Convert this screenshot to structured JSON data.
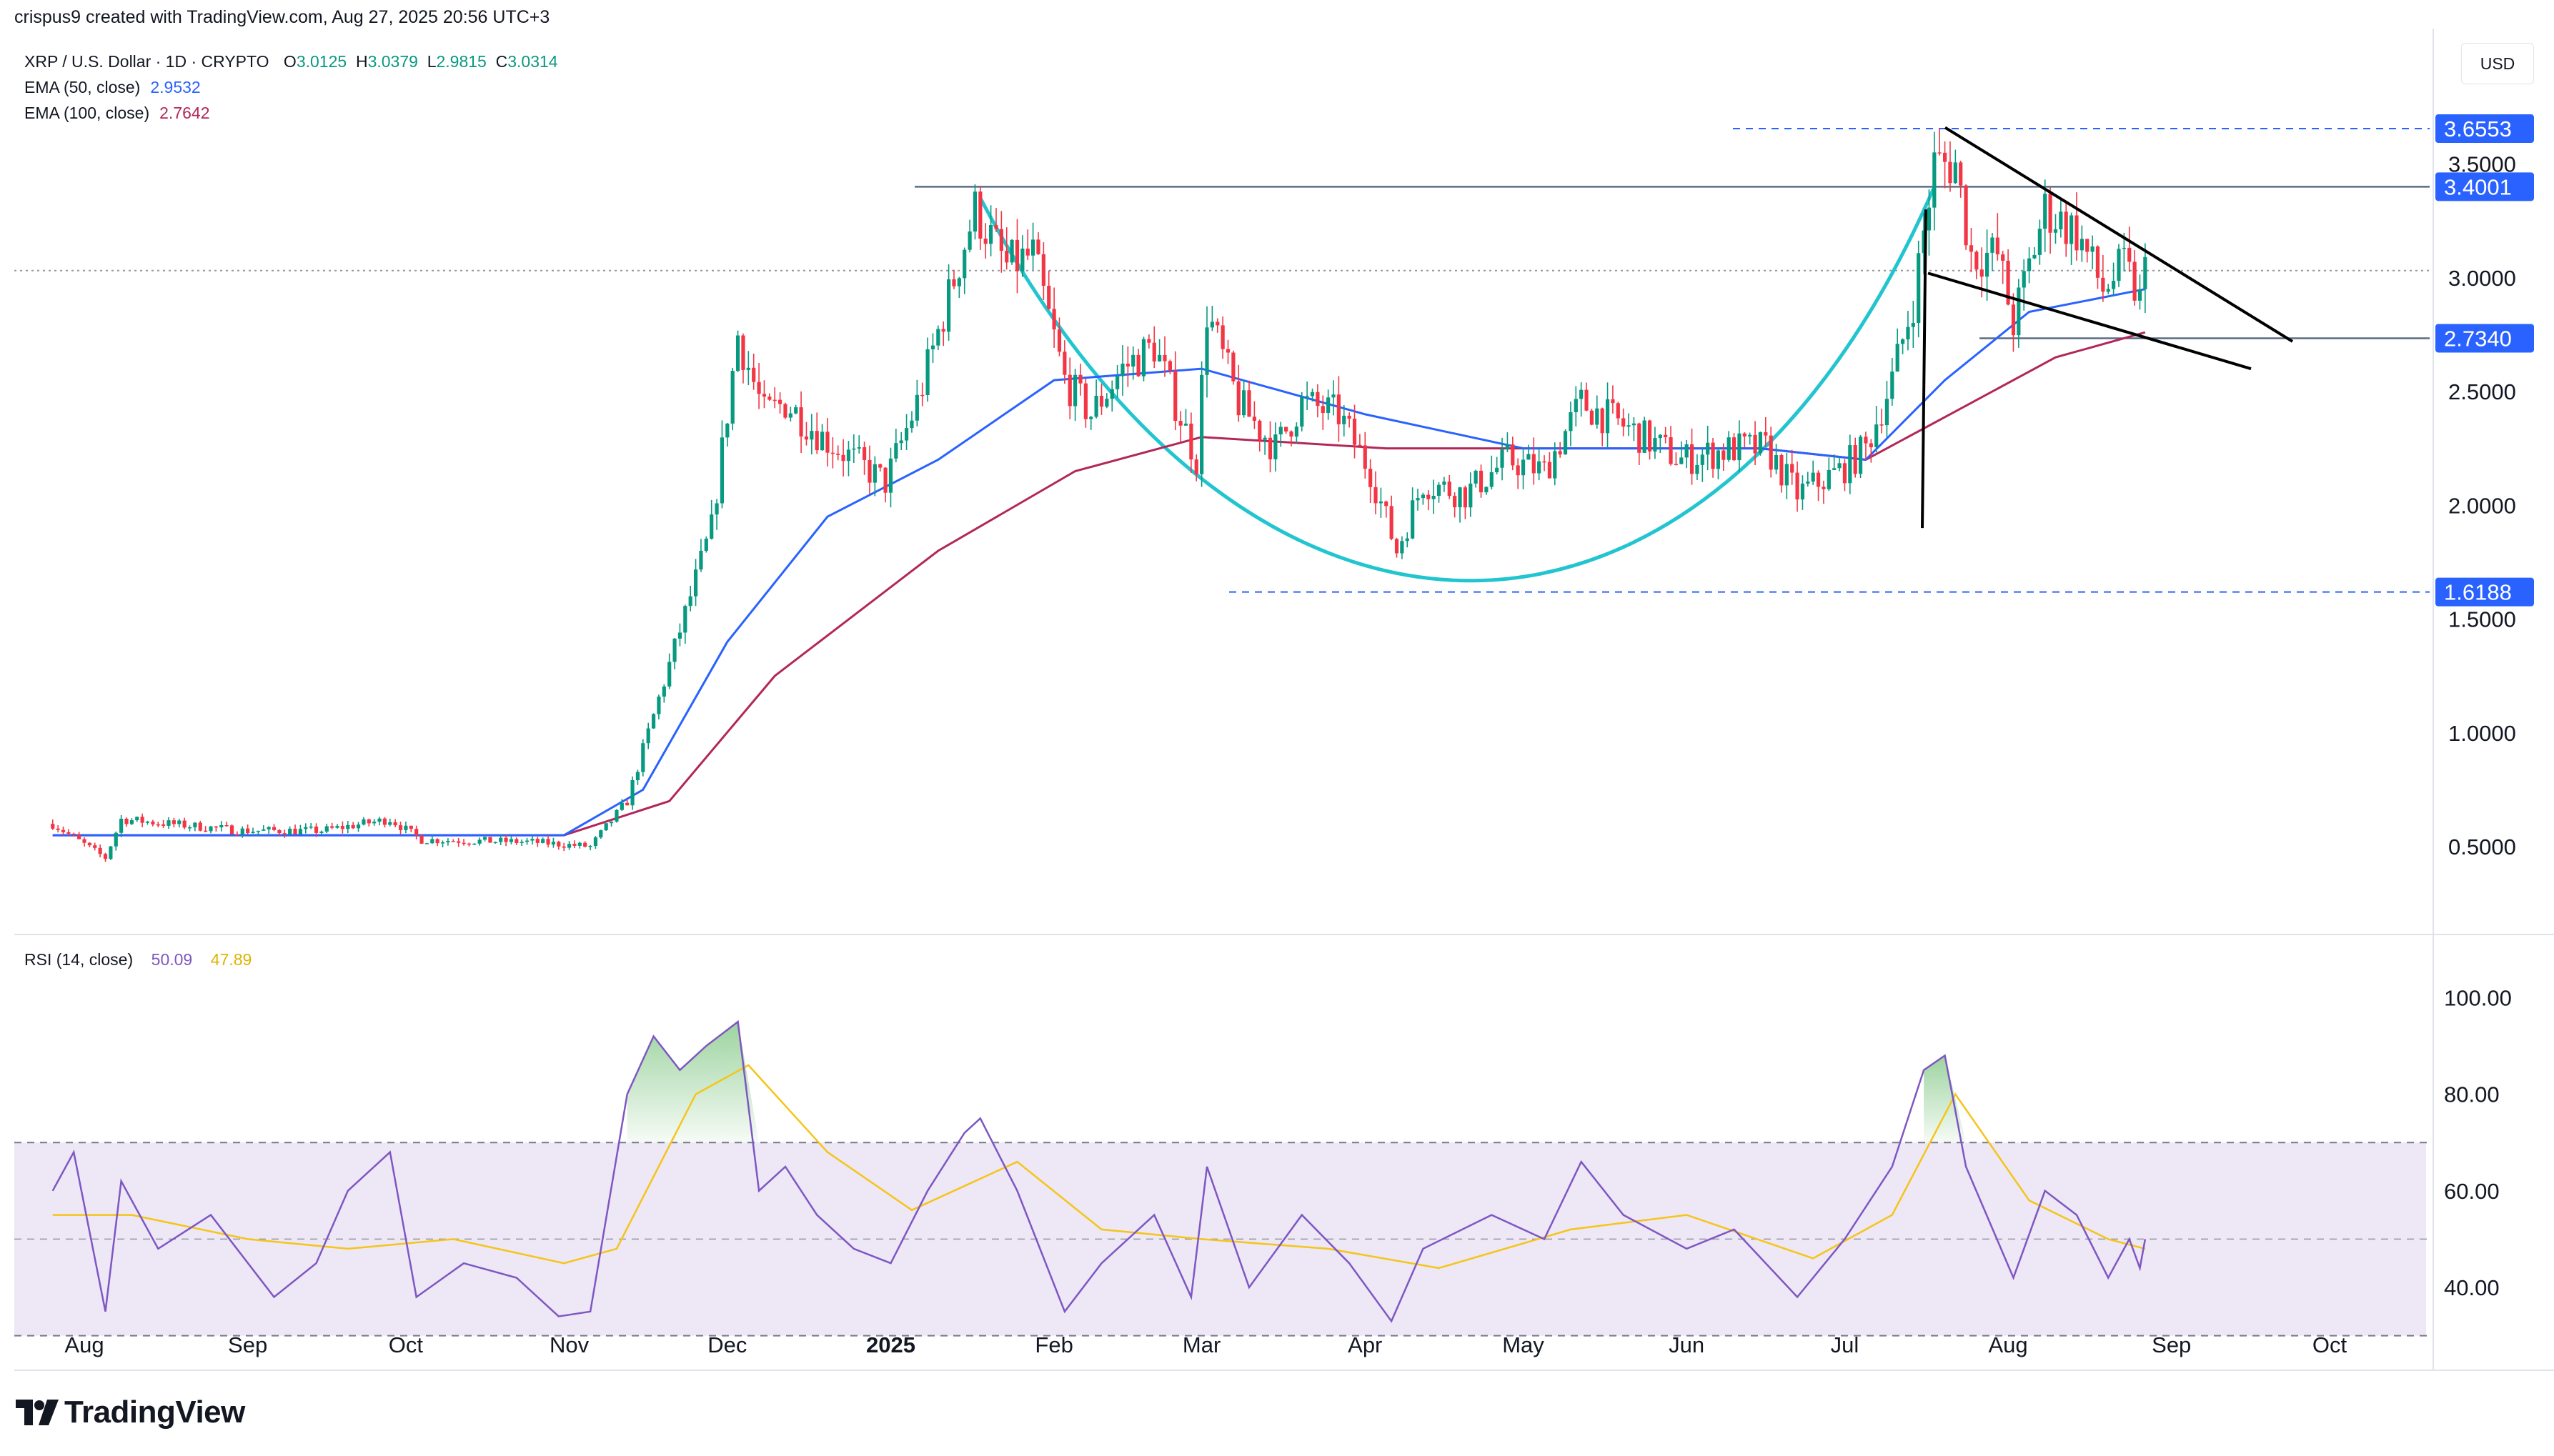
{
  "header": {
    "created_by": "crispus9 created with TradingView.com, Aug 27, 2025 20:56 UTC+3"
  },
  "legend": {
    "symbol": "XRP / U.S. Dollar · 1D · CRYPTO",
    "ohlc": {
      "O": "3.0125",
      "H": "3.0379",
      "L": "2.9815",
      "C": "3.0314"
    },
    "ema50_label": "EMA (50, close)",
    "ema50_value": "2.9532",
    "ema100_label": "EMA (100, close)",
    "ema100_value": "2.7642"
  },
  "currency": "USD",
  "rsi_legend": {
    "label": "RSI (14, close)",
    "rsi": "50.09",
    "ma": "47.89"
  },
  "brand": "TradingView",
  "colors": {
    "up": "#089981",
    "down": "#f23645",
    "ema50": "#2962ff",
    "ema100": "#b2275a",
    "cup": "#22c5cf",
    "rsi": "#7e57c2",
    "rsi_ma": "#f5c518",
    "band": "#ede7f6",
    "tag": "#2962ff"
  },
  "chart_data": [
    {
      "type": "candlestick",
      "symbol": "XRP / U.S. Dollar",
      "timeframe": "1D",
      "x_axis_labels": [
        "Aug",
        "Sep",
        "Oct",
        "Nov",
        "Dec",
        "2025",
        "Feb",
        "Mar",
        "Apr",
        "May",
        "Jun",
        "Jul",
        "Aug",
        "Sep",
        "Oct"
      ],
      "y_axis_ticks": [
        0.5,
        1.0,
        1.5,
        2.0,
        2.5,
        3.0,
        3.5
      ],
      "y_axis_tick_labels": [
        "0.5000",
        "1.0000",
        "1.5000",
        "2.0000",
        "2.5000",
        "3.0000",
        "3.5000"
      ],
      "ylim": [
        0.2,
        3.7
      ],
      "price_tags": [
        {
          "value": 3.6553,
          "label": "3.6553"
        },
        {
          "value": 3.4001,
          "label": "3.4001"
        },
        {
          "value": 2.734,
          "label": "2.7340"
        },
        {
          "value": 1.6188,
          "label": "1.6188"
        }
      ],
      "current_price": 3.0314,
      "price_path": [
        [
          "2024-07-26",
          0.6
        ],
        [
          "2024-08-05",
          0.45
        ],
        [
          "2024-08-08",
          0.62
        ],
        [
          "2024-08-31",
          0.57
        ],
        [
          "2024-09-15",
          0.57
        ],
        [
          "2024-09-28",
          0.62
        ],
        [
          "2024-10-04",
          0.53
        ],
        [
          "2024-10-25",
          0.52
        ],
        [
          "2024-11-05",
          0.5
        ],
        [
          "2024-11-12",
          0.7
        ],
        [
          "2024-11-22",
          1.45
        ],
        [
          "2024-11-28",
          1.9
        ],
        [
          "2024-12-03",
          2.75
        ],
        [
          "2024-12-08",
          2.4
        ],
        [
          "2024-12-12",
          2.45
        ],
        [
          "2024-12-19",
          2.3
        ],
        [
          "2024-12-25",
          2.2
        ],
        [
          "2024-12-31",
          2.1
        ],
        [
          "2025-01-06",
          2.45
        ],
        [
          "2025-01-15",
          3.15
        ],
        [
          "2025-01-17",
          3.3
        ],
        [
          "2025-01-23",
          3.05
        ],
        [
          "2025-01-28",
          3.1
        ],
        [
          "2025-02-03",
          2.55
        ],
        [
          "2025-02-08",
          2.4
        ],
        [
          "2025-02-14",
          2.6
        ],
        [
          "2025-02-20",
          2.7
        ],
        [
          "2025-02-28",
          2.2
        ],
        [
          "2025-03-02",
          2.85
        ],
        [
          "2025-03-08",
          2.45
        ],
        [
          "2025-03-15",
          2.25
        ],
        [
          "2025-03-20",
          2.45
        ],
        [
          "2025-03-27",
          2.4
        ],
        [
          "2025-04-02",
          2.15
        ],
        [
          "2025-04-07",
          1.8
        ],
        [
          "2025-04-12",
          2.1
        ],
        [
          "2025-04-20",
          2.05
        ],
        [
          "2025-04-28",
          2.2
        ],
        [
          "2025-05-05",
          2.15
        ],
        [
          "2025-05-12",
          2.45
        ],
        [
          "2025-05-20",
          2.35
        ],
        [
          "2025-05-31",
          2.2
        ],
        [
          "2025-06-10",
          2.25
        ],
        [
          "2025-06-16",
          2.25
        ],
        [
          "2025-06-22",
          2.05
        ],
        [
          "2025-06-30",
          2.15
        ],
        [
          "2025-07-05",
          2.25
        ],
        [
          "2025-07-10",
          2.55
        ],
        [
          "2025-07-14",
          2.9
        ],
        [
          "2025-07-18",
          3.5
        ],
        [
          "2025-07-22",
          3.5
        ],
        [
          "2025-07-25",
          3.1
        ],
        [
          "2025-07-30",
          3.1
        ],
        [
          "2025-08-02",
          2.8
        ],
        [
          "2025-08-08",
          3.3
        ],
        [
          "2025-08-14",
          3.2
        ],
        [
          "2025-08-19",
          2.95
        ],
        [
          "2025-08-23",
          3.05
        ],
        [
          "2025-08-26",
          2.9
        ],
        [
          "2025-08-27",
          3.03
        ]
      ],
      "ema50_path": [
        [
          "2024-07-26",
          0.55
        ],
        [
          "2024-10-31",
          0.55
        ],
        [
          "2024-11-15",
          0.75
        ],
        [
          "2024-12-01",
          1.4
        ],
        [
          "2024-12-20",
          1.95
        ],
        [
          "2025-01-10",
          2.2
        ],
        [
          "2025-02-01",
          2.55
        ],
        [
          "2025-03-01",
          2.6
        ],
        [
          "2025-04-01",
          2.4
        ],
        [
          "2025-05-01",
          2.25
        ],
        [
          "2025-06-15",
          2.25
        ],
        [
          "2025-07-05",
          2.2
        ],
        [
          "2025-07-20",
          2.55
        ],
        [
          "2025-08-05",
          2.85
        ],
        [
          "2025-08-27",
          2.95
        ]
      ],
      "ema100_path": [
        [
          "2024-07-26",
          0.55
        ],
        [
          "2024-10-31",
          0.55
        ],
        [
          "2024-11-20",
          0.7
        ],
        [
          "2024-12-10",
          1.25
        ],
        [
          "2025-01-10",
          1.8
        ],
        [
          "2025-02-05",
          2.15
        ],
        [
          "2025-03-01",
          2.3
        ],
        [
          "2025-04-05",
          2.25
        ],
        [
          "2025-05-15",
          2.25
        ],
        [
          "2025-06-15",
          2.25
        ],
        [
          "2025-07-05",
          2.2
        ],
        [
          "2025-07-25",
          2.45
        ],
        [
          "2025-08-10",
          2.65
        ],
        [
          "2025-08-27",
          2.76
        ]
      ]
    },
    {
      "type": "line",
      "title": "RSI (14, close)",
      "y_axis_ticks": [
        40,
        60,
        80,
        100
      ],
      "y_axis_tick_labels": [
        "40.00",
        "60.00",
        "80.00",
        "100.00"
      ],
      "ylim": [
        25,
        100
      ],
      "band": [
        30,
        70
      ],
      "midline": 50,
      "rsi_path": [
        [
          "2024-07-26",
          60
        ],
        [
          "2024-07-30",
          68
        ],
        [
          "2024-08-05",
          35
        ],
        [
          "2024-08-08",
          62
        ],
        [
          "2024-08-15",
          48
        ],
        [
          "2024-08-25",
          55
        ],
        [
          "2024-09-06",
          38
        ],
        [
          "2024-09-14",
          45
        ],
        [
          "2024-09-20",
          60
        ],
        [
          "2024-09-28",
          68
        ],
        [
          "2024-10-03",
          38
        ],
        [
          "2024-10-12",
          45
        ],
        [
          "2024-10-22",
          42
        ],
        [
          "2024-10-30",
          34
        ],
        [
          "2024-11-05",
          35
        ],
        [
          "2024-11-12",
          80
        ],
        [
          "2024-11-17",
          92
        ],
        [
          "2024-11-22",
          85
        ],
        [
          "2024-11-27",
          90
        ],
        [
          "2024-12-03",
          95
        ],
        [
          "2024-12-07",
          60
        ],
        [
          "2024-12-12",
          65
        ],
        [
          "2024-12-18",
          55
        ],
        [
          "2024-12-25",
          48
        ],
        [
          "2025-01-01",
          45
        ],
        [
          "2025-01-08",
          60
        ],
        [
          "2025-01-15",
          72
        ],
        [
          "2025-01-18",
          75
        ],
        [
          "2025-01-25",
          60
        ],
        [
          "2025-02-03",
          35
        ],
        [
          "2025-02-10",
          45
        ],
        [
          "2025-02-20",
          55
        ],
        [
          "2025-02-27",
          38
        ],
        [
          "2025-03-02",
          65
        ],
        [
          "2025-03-10",
          40
        ],
        [
          "2025-03-20",
          55
        ],
        [
          "2025-03-29",
          45
        ],
        [
          "2025-04-06",
          33
        ],
        [
          "2025-04-12",
          48
        ],
        [
          "2025-04-25",
          55
        ],
        [
          "2025-05-05",
          50
        ],
        [
          "2025-05-12",
          66
        ],
        [
          "2025-05-20",
          55
        ],
        [
          "2025-06-01",
          48
        ],
        [
          "2025-06-10",
          52
        ],
        [
          "2025-06-22",
          38
        ],
        [
          "2025-07-01",
          50
        ],
        [
          "2025-07-10",
          65
        ],
        [
          "2025-07-16",
          85
        ],
        [
          "2025-07-20",
          88
        ],
        [
          "2025-07-24",
          65
        ],
        [
          "2025-08-02",
          42
        ],
        [
          "2025-08-08",
          60
        ],
        [
          "2025-08-14",
          55
        ],
        [
          "2025-08-20",
          42
        ],
        [
          "2025-08-24",
          50
        ],
        [
          "2025-08-26",
          44
        ],
        [
          "2025-08-27",
          50
        ]
      ],
      "rsi_ma_path": [
        [
          "2024-07-26",
          55
        ],
        [
          "2024-08-10",
          55
        ],
        [
          "2024-09-01",
          50
        ],
        [
          "2024-09-20",
          48
        ],
        [
          "2024-10-10",
          50
        ],
        [
          "2024-10-31",
          45
        ],
        [
          "2024-11-10",
          48
        ],
        [
          "2024-11-25",
          80
        ],
        [
          "2024-12-05",
          86
        ],
        [
          "2024-12-20",
          68
        ],
        [
          "2025-01-05",
          56
        ],
        [
          "2025-01-25",
          66
        ],
        [
          "2025-02-10",
          52
        ],
        [
          "2025-03-01",
          50
        ],
        [
          "2025-03-25",
          48
        ],
        [
          "2025-04-15",
          44
        ],
        [
          "2025-05-10",
          52
        ],
        [
          "2025-06-01",
          55
        ],
        [
          "2025-06-25",
          46
        ],
        [
          "2025-07-10",
          55
        ],
        [
          "2025-07-22",
          80
        ],
        [
          "2025-08-05",
          58
        ],
        [
          "2025-08-20",
          50
        ],
        [
          "2025-08-27",
          48
        ]
      ]
    }
  ]
}
